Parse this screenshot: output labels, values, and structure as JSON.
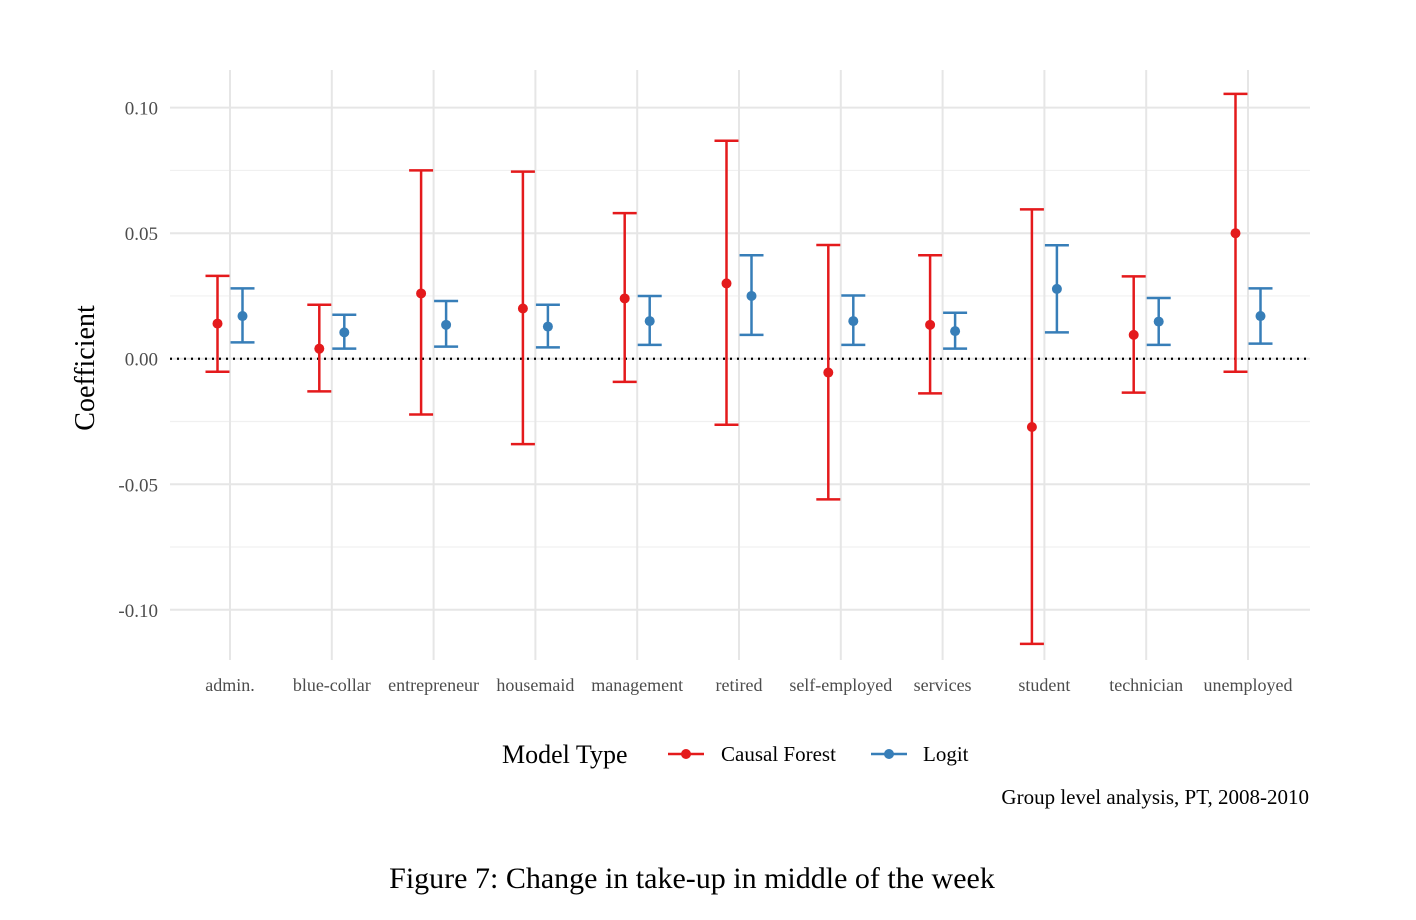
{
  "chart_data": {
    "type": "errorbar",
    "ylabel": "Coefficient",
    "xlabel": "",
    "ylim": [
      -0.12,
      0.115
    ],
    "yticks": [
      -0.1,
      -0.05,
      0.0,
      0.05,
      0.1
    ],
    "ytick_labels": [
      "-0.10",
      "-0.05",
      "0.00",
      "0.05",
      "0.10"
    ],
    "grid": true,
    "reference_line": 0,
    "legend_position": "bottom",
    "legend_title": "Model Type",
    "categories": [
      "admin.",
      "blue-collar",
      "entrepreneur",
      "housemaid",
      "management",
      "retired",
      "self-employed",
      "services",
      "student",
      "technician",
      "unemployed"
    ],
    "series": [
      {
        "name": "Causal Forest",
        "color": "#E41A1C",
        "estimate": [
          0.014,
          0.004,
          0.026,
          0.02,
          0.024,
          0.03,
          -0.0055,
          0.0135,
          -0.0272,
          0.0095,
          0.05
        ],
        "lower": [
          -0.0052,
          -0.013,
          -0.0222,
          -0.034,
          -0.0092,
          -0.0263,
          -0.056,
          -0.0138,
          -0.1136,
          -0.0135,
          -0.0052
        ],
        "upper": [
          0.033,
          0.0215,
          0.075,
          0.0745,
          0.058,
          0.0868,
          0.0453,
          0.0412,
          0.0595,
          0.0328,
          0.1055
        ]
      },
      {
        "name": "Logit",
        "color": "#377EB8",
        "estimate": [
          0.017,
          0.0105,
          0.0135,
          0.0128,
          0.015,
          0.025,
          0.015,
          0.011,
          0.0278,
          0.0148,
          0.017
        ],
        "lower": [
          0.0065,
          0.004,
          0.0048,
          0.0045,
          0.0055,
          0.0095,
          0.0055,
          0.004,
          0.0105,
          0.0055,
          0.006
        ],
        "upper": [
          0.028,
          0.0175,
          0.023,
          0.0215,
          0.025,
          0.0412,
          0.0252,
          0.0183,
          0.0452,
          0.0242,
          0.028
        ]
      }
    ],
    "caption": "Group level analysis, PT, 2008-2010"
  },
  "figure_caption": "Figure 7: Change in take-up in middle of the week"
}
